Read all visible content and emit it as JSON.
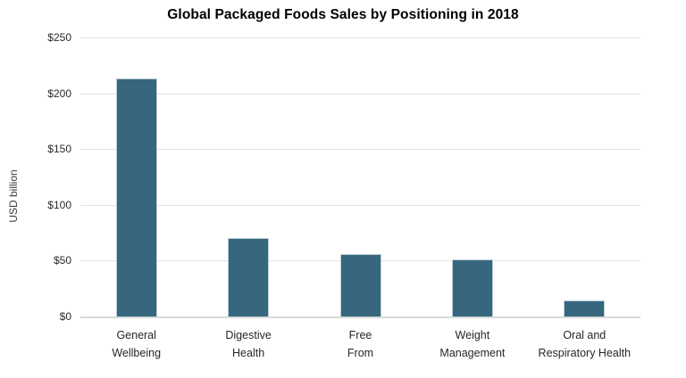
{
  "chart_data": {
    "type": "bar",
    "title": "Global Packaged Foods Sales by Positioning in 2018",
    "xlabel": "",
    "ylabel": "USD billion",
    "categories": [
      "General Wellbeing",
      "Digestive Health",
      "Free From",
      "Weight Management",
      "Oral and Respiratory Health"
    ],
    "category_line_breaks": [
      [
        "General",
        "Wellbeing"
      ],
      [
        "Digestive",
        "Health"
      ],
      [
        "Free",
        "From"
      ],
      [
        "Weight",
        "Management"
      ],
      [
        "Oral and",
        "Respiratory Health"
      ]
    ],
    "values": [
      213,
      70,
      56,
      51,
      14
    ],
    "ylim": [
      0,
      250
    ],
    "ytick_interval": 50,
    "ytick_labels": [
      "$0",
      "$50",
      "$100",
      "$150",
      "$200",
      "$250"
    ],
    "grid": true,
    "legend": "none",
    "bar_color": "#36677f",
    "bar_border_color": "#bccdd7",
    "gridline_color": "#e2e2e2",
    "axis_line_color": "#d9d9d9"
  }
}
